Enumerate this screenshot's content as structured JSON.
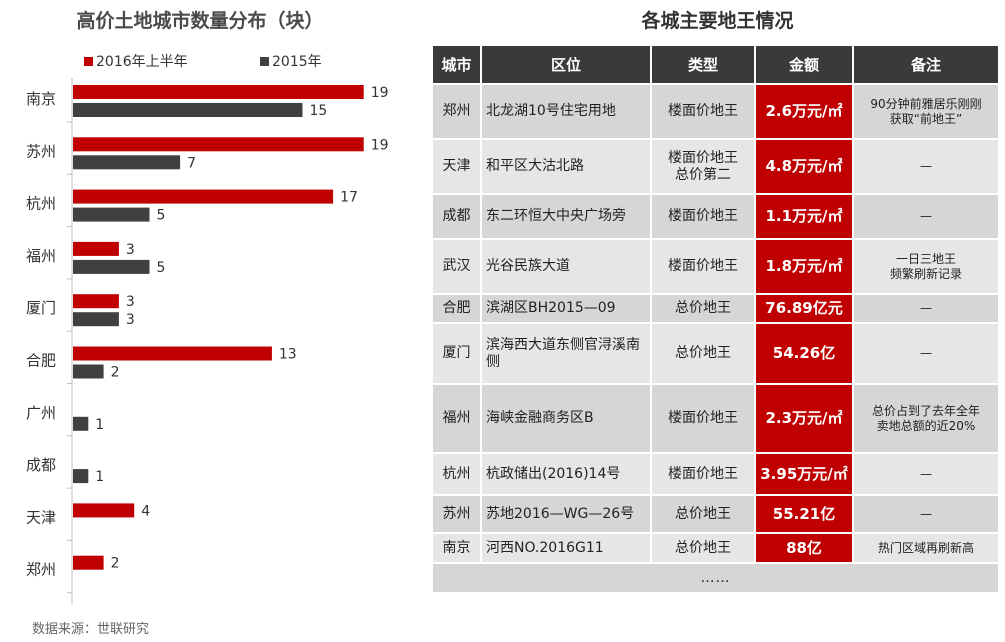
{
  "chart_data": {
    "type": "bar",
    "orientation": "horizontal",
    "title": "高价土地城市数量分布（块）",
    "categories": [
      "南京",
      "苏州",
      "杭州",
      "福州",
      "厦门",
      "合肥",
      "广州",
      "成都",
      "天津",
      "郑州"
    ],
    "series": [
      {
        "name": "2016年上半年",
        "color": "#c00000",
        "values": [
          19,
          19,
          17,
          3,
          3,
          13,
          null,
          null,
          4,
          2
        ]
      },
      {
        "name": "2015年",
        "color": "#404040",
        "values": [
          15,
          7,
          5,
          5,
          3,
          2,
          1,
          1,
          null,
          null
        ]
      }
    ],
    "xlim": [
      0,
      20
    ],
    "grid": false,
    "legend_position": "top"
  },
  "table": {
    "title": "各城主要地王情况",
    "headers": [
      "城市",
      "区位",
      "类型",
      "金额",
      "备注"
    ],
    "rows": [
      {
        "city": "郑州",
        "location": "北龙湖10号住宅用地",
        "type": [
          "楼面价地王"
        ],
        "amount": "2.6万元/㎡",
        "note": [
          "90分钟前雅居乐刚刚",
          "获取“前地王”"
        ]
      },
      {
        "city": "天津",
        "location": "和平区大沽北路",
        "type": [
          "楼面价地王",
          "总价第二"
        ],
        "amount": "4.8万元/㎡",
        "note": [
          "—"
        ]
      },
      {
        "city": "成都",
        "location": "东二环恒大中央广场旁",
        "type": [
          "楼面价地王"
        ],
        "amount": "1.1万元/㎡",
        "note": [
          "—"
        ]
      },
      {
        "city": "武汉",
        "location": "光谷民族大道",
        "type": [
          "楼面价地王"
        ],
        "amount": "1.8万元/㎡",
        "note": [
          "一日三地王",
          "频繁刷新记录"
        ]
      },
      {
        "city": "合肥",
        "location": "滨湖区BH2015—09",
        "type": [
          "总价地王"
        ],
        "amount": "76.89亿元",
        "note": [
          "—"
        ]
      },
      {
        "city": "厦门",
        "location": "滨海西大道东侧官浔溪南侧",
        "type": [
          "总价地王"
        ],
        "amount": "54.26亿",
        "note": [
          "—"
        ]
      },
      {
        "city": "福州",
        "location": "海峡金融商务区B",
        "type": [
          "楼面价地王"
        ],
        "amount": "2.3万元/㎡",
        "note": [
          "总价占到了去年全年",
          "卖地总额的近20%"
        ]
      },
      {
        "city": "杭州",
        "location": "杭政储出(2016)14号",
        "type": [
          "楼面价地王"
        ],
        "amount": "3.95万元/㎡",
        "note": [
          "—"
        ]
      },
      {
        "city": "苏州",
        "location": "苏地2016—WG—26号",
        "type": [
          "总价地王"
        ],
        "amount": "55.21亿",
        "note": [
          "—"
        ]
      },
      {
        "city": "南京",
        "location": "河西NO.2016G11",
        "type": [
          "总价地王"
        ],
        "amount": "88亿",
        "note": [
          "热门区域再刷新高"
        ]
      }
    ],
    "footer": "……"
  },
  "source": "数据来源：世联研究"
}
